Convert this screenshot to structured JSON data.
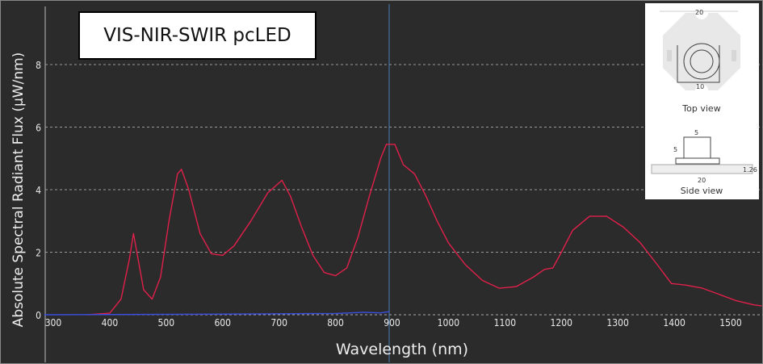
{
  "chart_data": {
    "type": "line",
    "title": "VIS-NIR-SWIR pcLED",
    "xlabel": "Wavelength (nm)",
    "ylabel": "Absolute Spectral Radiant Flux (µW/nm)",
    "xlim": [
      284,
      1555
    ],
    "ylim": [
      0,
      9
    ],
    "xticks": [
      "300",
      "400",
      "500",
      "600",
      "700",
      "800",
      "900",
      "1000",
      "1100",
      "1200",
      "1300",
      "1400",
      "1500"
    ],
    "yticks": [
      "0",
      "2",
      "4",
      "6",
      "8"
    ],
    "grid": "horizontal dashed",
    "cursor_x": 895,
    "series": [
      {
        "color": "#e0204a",
        "x": [
          360,
          400,
          420,
          435,
          442,
          450,
          460,
          475,
          490,
          505,
          520,
          527,
          540,
          560,
          580,
          600,
          620,
          650,
          680,
          705,
          720,
          740,
          760,
          780,
          800,
          820,
          840,
          860,
          880,
          890,
          905,
          920,
          940,
          960,
          980,
          1000,
          1030,
          1060,
          1090,
          1120,
          1150,
          1170,
          1185,
          1200,
          1220,
          1250,
          1280,
          1310,
          1340,
          1370,
          1395,
          1420,
          1450,
          1480,
          1510,
          1540,
          1555
        ],
        "y": [
          0,
          0.05,
          0.5,
          1.8,
          2.6,
          1.8,
          0.8,
          0.5,
          1.2,
          3.0,
          4.5,
          4.65,
          4.0,
          2.6,
          1.95,
          1.9,
          2.2,
          3.0,
          3.9,
          4.3,
          3.8,
          2.8,
          1.9,
          1.35,
          1.25,
          1.5,
          2.5,
          3.8,
          5.0,
          5.45,
          5.45,
          4.8,
          4.5,
          3.8,
          3.0,
          2.3,
          1.6,
          1.1,
          0.85,
          0.9,
          1.2,
          1.45,
          1.5,
          2.0,
          2.7,
          3.15,
          3.15,
          2.8,
          2.3,
          1.6,
          1.0,
          0.95,
          0.85,
          0.65,
          0.45,
          0.32,
          0.28
        ]
      },
      {
        "color": "#3a4fe0",
        "x": [
          284,
          600,
          700,
          800,
          850,
          880,
          895
        ],
        "y": [
          0,
          0.02,
          0.03,
          0.04,
          0.08,
          0.06,
          0.1
        ]
      }
    ]
  },
  "inset": {
    "top_width": "20",
    "top_inner": "10",
    "top_caption": "Top view",
    "side_top": "5",
    "side_height": "5",
    "side_thickness": "1.26",
    "side_width": "20",
    "side_caption": "Side view"
  }
}
